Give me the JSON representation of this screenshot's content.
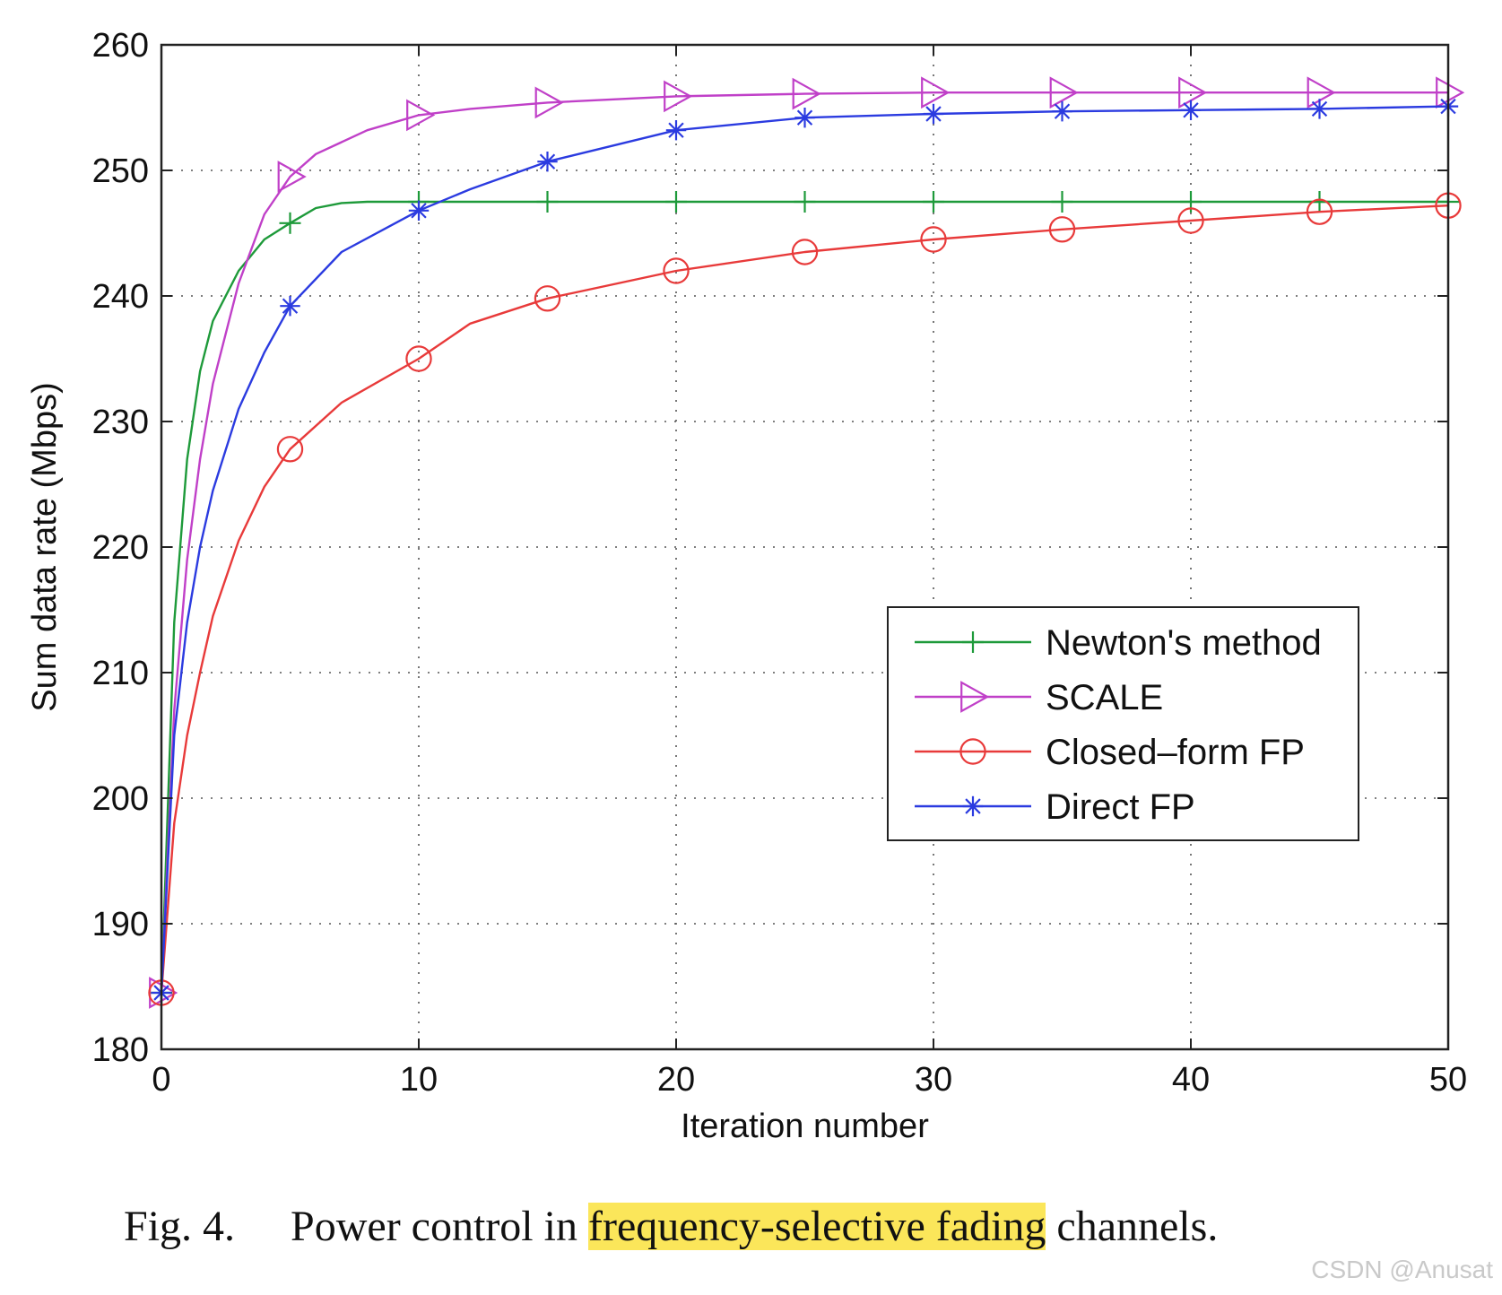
{
  "chart_data": {
    "type": "line",
    "xlabel": "Iteration number",
    "ylabel": "Sum data rate (Mbps)",
    "xlim": [
      0,
      50
    ],
    "ylim": [
      180,
      260
    ],
    "xticks": [
      "0",
      "10",
      "20",
      "30",
      "40",
      "50"
    ],
    "yticks": [
      "180",
      "190",
      "200",
      "210",
      "220",
      "230",
      "240",
      "250",
      "260"
    ],
    "grid": true,
    "legend_position": "lower-right",
    "series": [
      {
        "name": "Newton's method",
        "color": "#1e9a3a",
        "marker": "plus",
        "x": [
          0,
          0.5,
          1,
          1.5,
          2,
          3,
          4,
          5,
          6,
          7,
          8,
          10,
          15,
          20,
          25,
          30,
          35,
          40,
          45,
          50
        ],
        "y": [
          184.5,
          214,
          227,
          234,
          238,
          242,
          244.5,
          245.8,
          247,
          247.4,
          247.5,
          247.5,
          247.5,
          247.5,
          247.5,
          247.5,
          247.5,
          247.5,
          247.5,
          247.5
        ],
        "marker_x": [
          0,
          5,
          10,
          15,
          20,
          25,
          30,
          35,
          40,
          45,
          50
        ]
      },
      {
        "name": "SCALE",
        "color": "#c040c8",
        "marker": "triangle-right",
        "x": [
          0,
          0.5,
          1,
          1.5,
          2,
          3,
          4,
          5,
          6,
          8,
          10,
          12,
          15,
          20,
          25,
          30,
          35,
          40,
          45,
          50
        ],
        "y": [
          184.5,
          207,
          219,
          227,
          233,
          241,
          246.5,
          249.5,
          251.3,
          253.2,
          254.4,
          254.9,
          255.4,
          255.9,
          256.1,
          256.2,
          256.2,
          256.2,
          256.2,
          256.2
        ],
        "marker_x": [
          0,
          5,
          10,
          15,
          20,
          25,
          30,
          35,
          40,
          45,
          50
        ]
      },
      {
        "name": "Closed–form FP",
        "color": "#e83a3a",
        "marker": "circle",
        "x": [
          0,
          0.5,
          1,
          1.5,
          2,
          3,
          4,
          5,
          7,
          10,
          12,
          15,
          20,
          25,
          30,
          35,
          40,
          45,
          50
        ],
        "y": [
          184.5,
          198,
          205,
          210,
          214.5,
          220.5,
          224.8,
          227.8,
          231.5,
          235,
          237.8,
          239.8,
          242,
          243.5,
          244.5,
          245.3,
          246,
          246.7,
          247.2
        ],
        "marker_x": [
          0,
          5,
          10,
          15,
          20,
          25,
          30,
          35,
          40,
          45,
          50
        ]
      },
      {
        "name": "Direct FP",
        "color": "#2b3be0",
        "marker": "asterisk",
        "x": [
          0,
          0.5,
          1,
          1.5,
          2,
          3,
          4,
          5,
          7,
          10,
          12,
          15,
          20,
          25,
          30,
          35,
          40,
          45,
          50
        ],
        "y": [
          184.5,
          205,
          214,
          220,
          224.5,
          231,
          235.5,
          239.2,
          243.5,
          246.8,
          248.5,
          250.7,
          253.2,
          254.2,
          254.5,
          254.7,
          254.8,
          254.9,
          255.1
        ],
        "marker_x": [
          0,
          5,
          10,
          15,
          20,
          25,
          30,
          35,
          40,
          45,
          50
        ]
      }
    ]
  },
  "caption": {
    "label": "Fig. 4.",
    "text_before": "Power control in ",
    "highlighted": "frequency-selective fading",
    "text_after": " channels.",
    "highlight_color": "#fbe65a"
  },
  "watermark": "CSDN @Anusat"
}
